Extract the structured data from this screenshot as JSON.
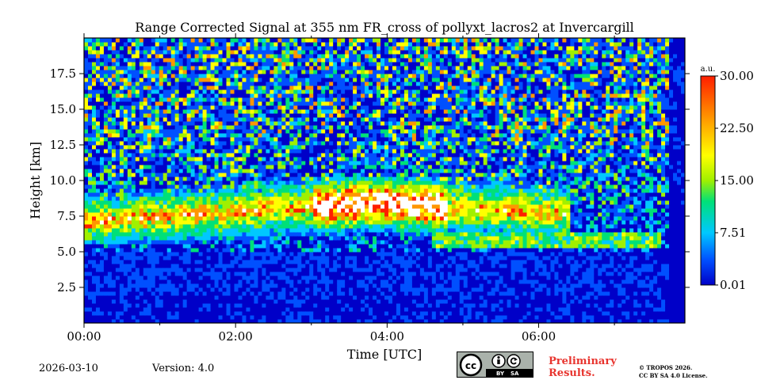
{
  "chart_data": {
    "type": "heatmap",
    "title": "Range Corrected Signal at 355 nm FR_cross of pollyxt_lacros2 at Invercargill",
    "xlabel": "Time [UTC]",
    "ylabel": "Height [km]",
    "x_ticks": [
      "00:00",
      "02:00",
      "04:00",
      "06:00"
    ],
    "x_tick_values_h": [
      0,
      2,
      4,
      6
    ],
    "xlim_h": [
      0,
      7.93
    ],
    "y_ticks": [
      "2.5",
      "5.0",
      "7.5",
      "10.0",
      "12.5",
      "15.0",
      "17.5"
    ],
    "y_tick_values_km": [
      2.5,
      5.0,
      7.5,
      10.0,
      12.5,
      15.0,
      17.5
    ],
    "ylim_km": [
      0,
      20
    ],
    "colorbar": {
      "unit": "a.u.",
      "ticks": [
        "0.01",
        "7.51",
        "15.00",
        "22.50",
        "30.00"
      ],
      "tick_values": [
        0.01,
        7.51,
        15.0,
        22.5,
        30.0
      ],
      "range": [
        0.01,
        30.0
      ]
    },
    "features": [
      {
        "name": "cirrus-cloud-layer",
        "t_start_h": 0.0,
        "t_end_h": 6.4,
        "h_bottom_km": 5.6,
        "h_top_km": 10.2
      },
      {
        "name": "lower-cloud-band",
        "t_start_h": 4.6,
        "t_end_h": 7.6,
        "h_bottom_km": 5.2,
        "h_top_km": 6.5
      },
      {
        "name": "boundary-layer",
        "t_start_h": 0.0,
        "t_end_h": 7.93,
        "h_bottom_km": 0.0,
        "h_top_km": 2.0
      }
    ]
  },
  "footer": {
    "date": "2026-03-10",
    "version": "Version: 4.0",
    "license_badge": {
      "by": "BY",
      "sa": "SA"
    },
    "preliminary_line1": "Preliminary",
    "preliminary_line2": "Results.",
    "copyright_line1": "© TROPOS 2026.",
    "copyright_line2": "CC BY SA 4.0 License."
  },
  "colors": {
    "colormap": [
      "#0000c8",
      "#0050ff",
      "#00c8ff",
      "#00e078",
      "#a0f000",
      "#ffff00",
      "#ff9600",
      "#ff1e00"
    ],
    "preliminary": "#e8342e"
  }
}
